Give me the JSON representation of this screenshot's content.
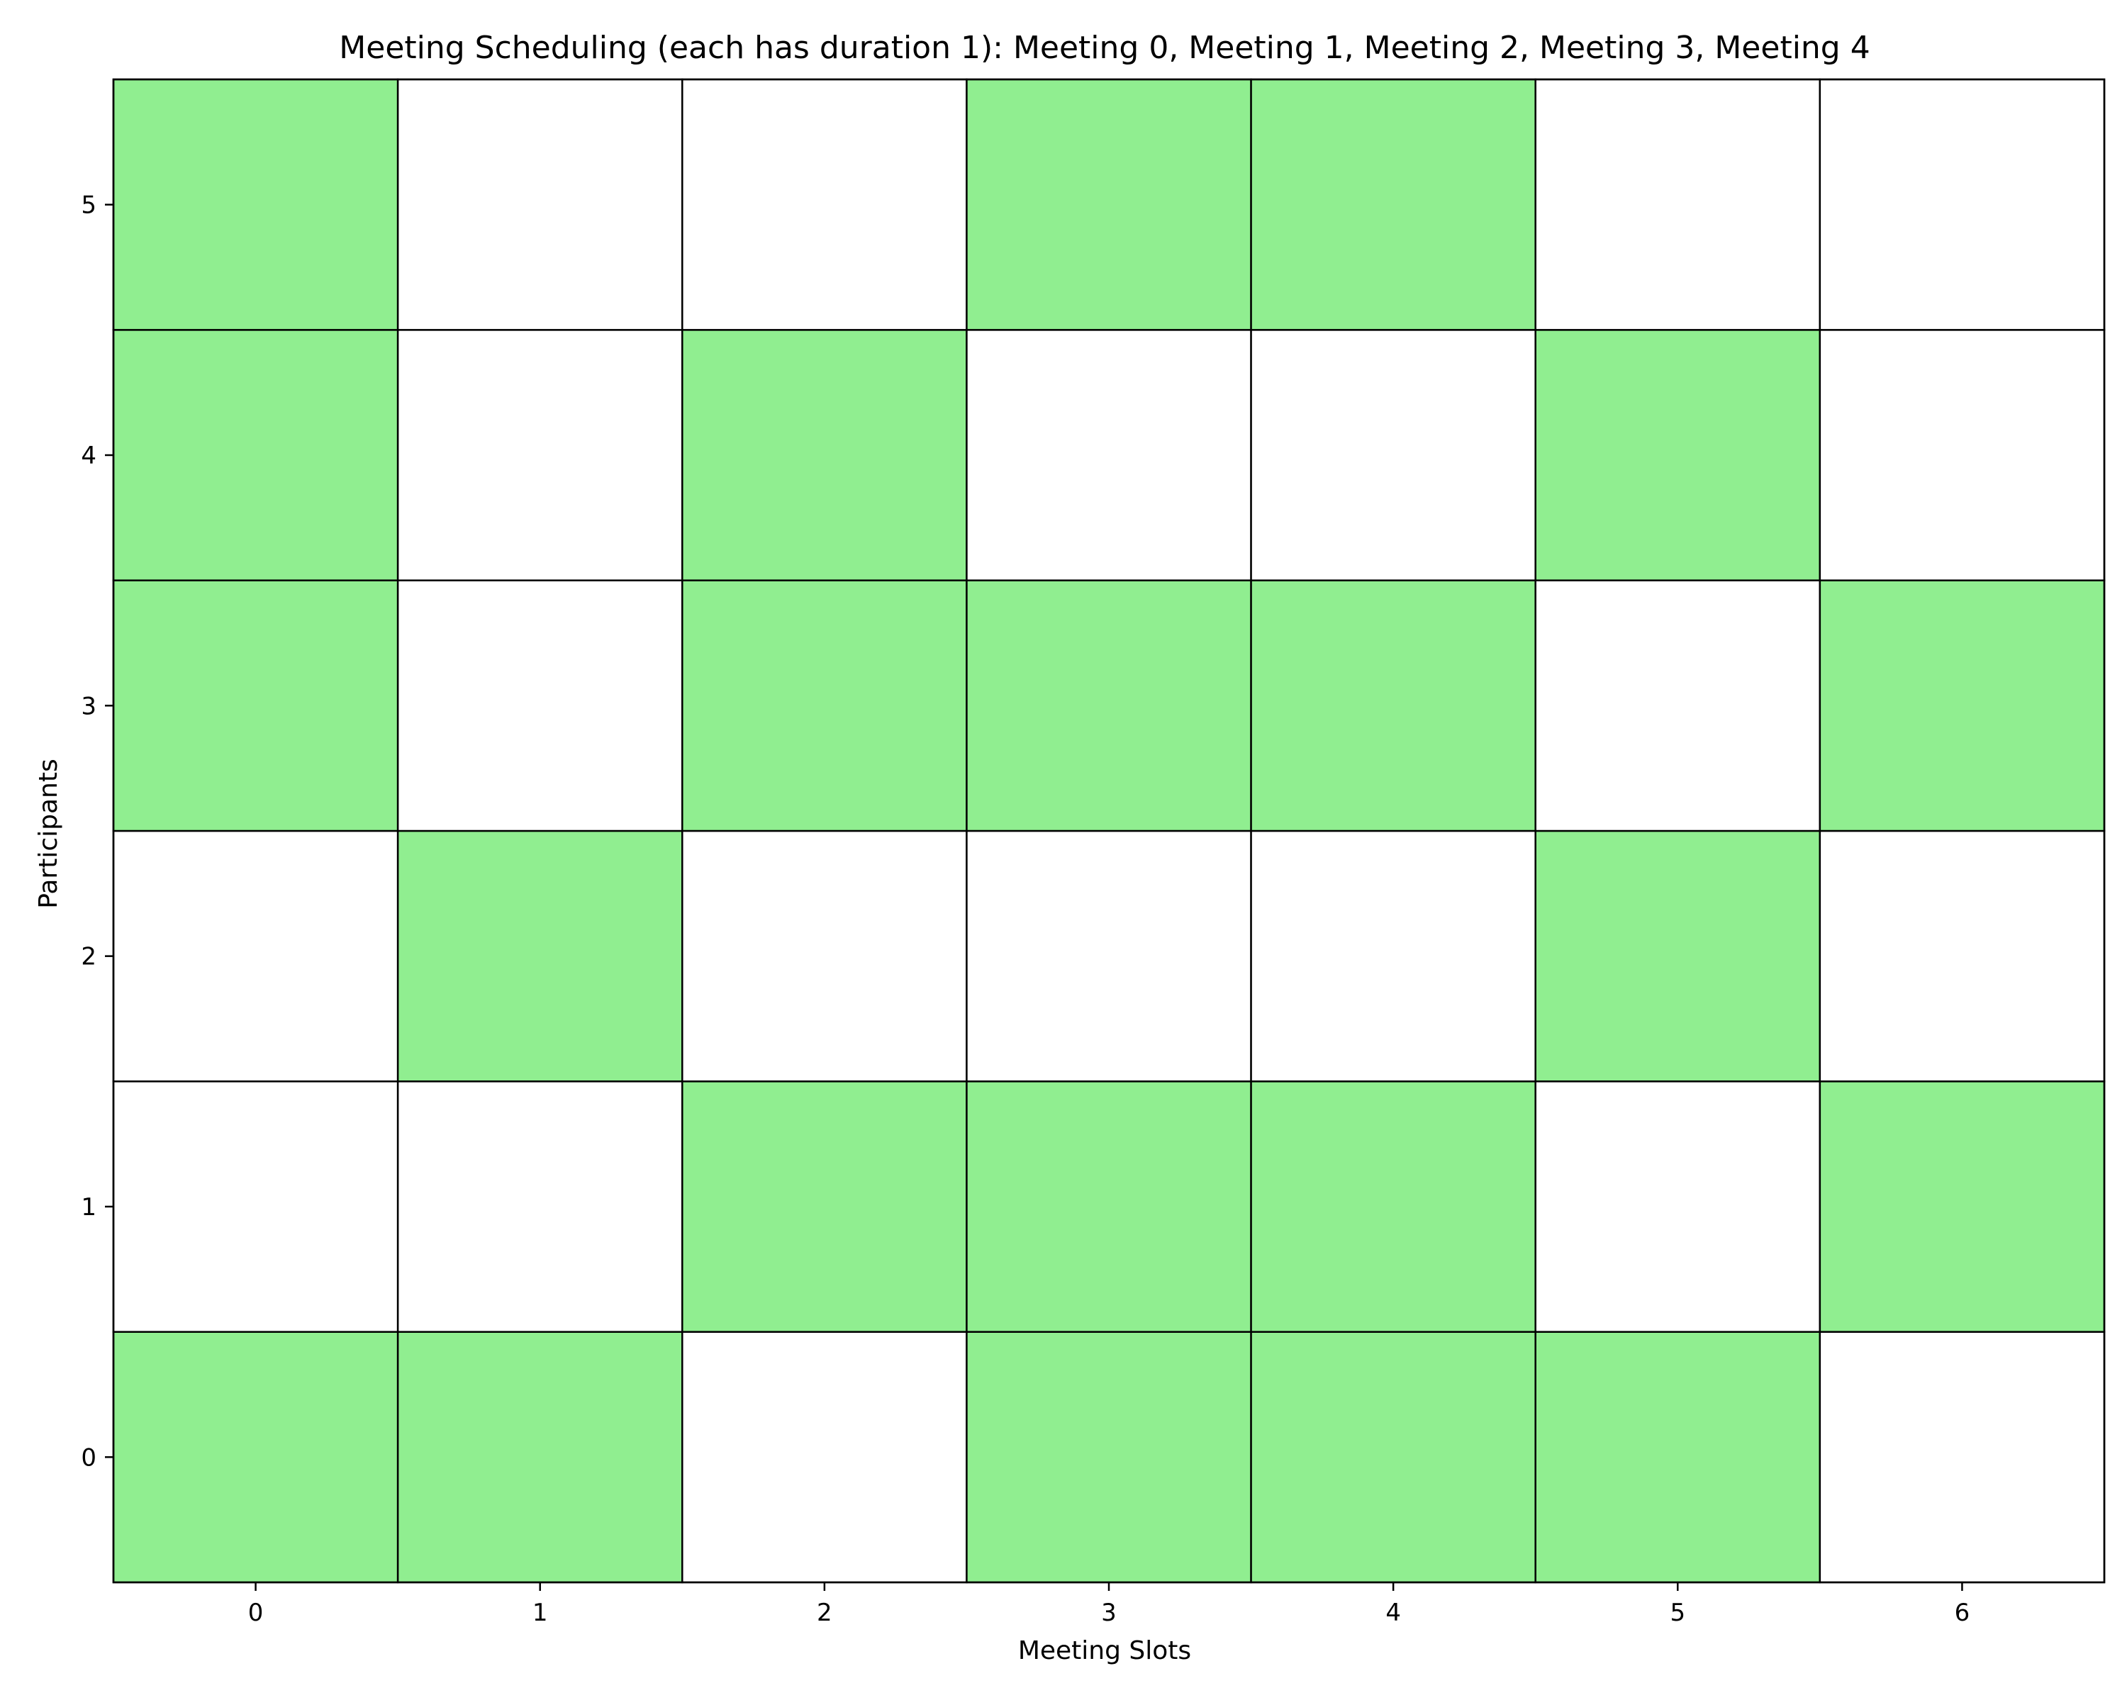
{
  "chart_data": {
    "type": "heatmap",
    "title": "Meeting Scheduling (each has duration 1): Meeting 0, Meeting 1, Meeting 2, Meeting 3, Meeting 4",
    "xlabel": "Meeting Slots",
    "ylabel": "Participants",
    "x_ticks": [
      "0",
      "1",
      "2",
      "3",
      "4",
      "5",
      "6"
    ],
    "y_ticks": [
      "0",
      "1",
      "2",
      "3",
      "4",
      "5"
    ],
    "xlim": [
      -0.5,
      6.5
    ],
    "ylim": [
      -0.5,
      5.5
    ],
    "grid": false,
    "colors": {
      "available": "#90ee90",
      "unavailable": "#ffffff",
      "cell_border": "#000000"
    },
    "availability": [
      [
        1,
        1,
        0,
        1,
        1,
        1,
        0
      ],
      [
        0,
        0,
        1,
        1,
        1,
        0,
        1
      ],
      [
        0,
        1,
        0,
        0,
        0,
        1,
        0
      ],
      [
        1,
        0,
        1,
        1,
        1,
        0,
        1
      ],
      [
        1,
        0,
        1,
        0,
        0,
        1,
        0
      ],
      [
        1,
        0,
        0,
        1,
        1,
        0,
        0
      ]
    ]
  }
}
